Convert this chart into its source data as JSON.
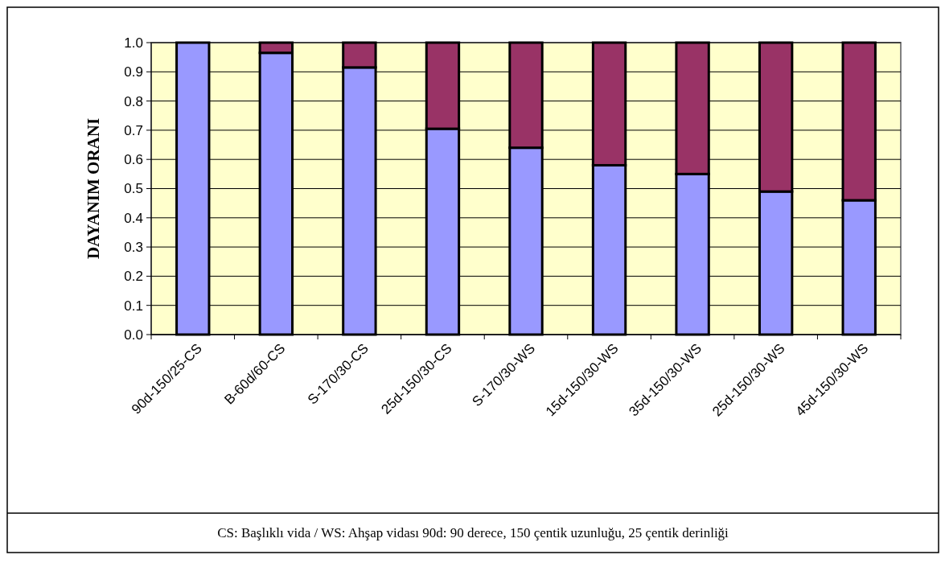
{
  "chart_data": {
    "type": "bar",
    "stacked": true,
    "ylabel": "DAYANIM ORANI",
    "categories": [
      "90d-150/25-CS",
      "B-60d/60-CS",
      "S-170/30-CS",
      "25d-150/30-CS",
      "S-170/30-WS",
      "15d-150/30-WS",
      "35d-150/30-WS",
      "25d-150/30-WS",
      "45d-150/30-WS"
    ],
    "series": [
      {
        "color": "#9999ff",
        "values": [
          1.0,
          0.965,
          0.915,
          0.705,
          0.64,
          0.58,
          0.55,
          0.49,
          0.46
        ]
      },
      {
        "color": "#993366",
        "values": [
          0,
          0.035,
          0.085,
          0.295,
          0.36,
          0.42,
          0.45,
          0.51,
          0.54
        ]
      }
    ],
    "ylim": [
      0,
      1
    ],
    "yticks": [
      {
        "value": 0,
        "label": "0.0"
      },
      0.1,
      0.2,
      0.3,
      0.4,
      0.5,
      0.6,
      0.7,
      0.8,
      0.9,
      {
        "value": 1,
        "label": "1.0"
      }
    ],
    "grid": "y",
    "annotations": [
      "CS: Başlıklı vida / WS: Ahşap vidası 90d: 90 derece, 150 çentik uzunluğu, 25 çentik derinliği"
    ]
  }
}
